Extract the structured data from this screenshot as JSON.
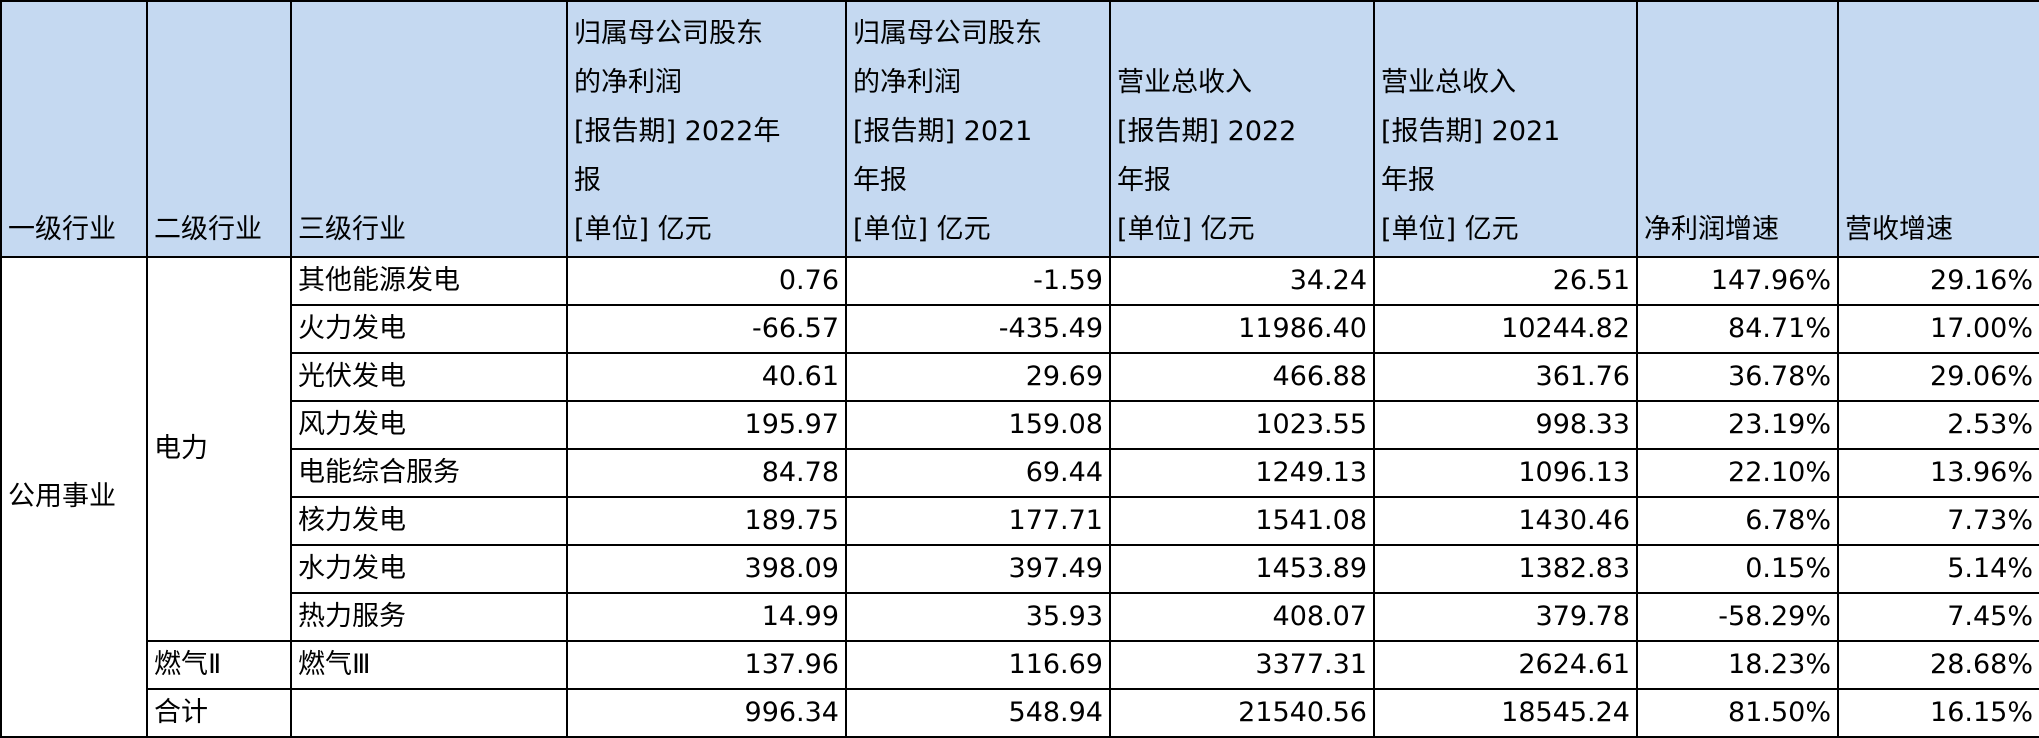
{
  "table": {
    "header": [
      "一级行业",
      "二级行业",
      "三级行业",
      "归属母公司股东\n的净利润\n[报告期] 2022年\n报\n[单位] 亿元",
      "归属母公司股东\n的净利润\n[报告期] 2021\n年报\n[单位] 亿元",
      "营业总收入\n[报告期] 2022\n年报\n[单位] 亿元",
      "营业总收入\n[报告期] 2021\n年报\n[单位] 亿元",
      "净利润增速",
      "营收增速"
    ],
    "level1": "公用事业",
    "groups": [
      {
        "name": "电力",
        "rows": [
          {
            "name": "其他能源发电",
            "cells": [
              "0.76",
              "-1.59",
              "34.24",
              "26.51",
              "147.96%",
              "29.16%"
            ]
          },
          {
            "name": "火力发电",
            "cells": [
              "-66.57",
              "-435.49",
              "11986.40",
              "10244.82",
              "84.71%",
              "17.00%"
            ]
          },
          {
            "name": "光伏发电",
            "cells": [
              "40.61",
              "29.69",
              "466.88",
              "361.76",
              "36.78%",
              "29.06%"
            ]
          },
          {
            "name": "风力发电",
            "cells": [
              "195.97",
              "159.08",
              "1023.55",
              "998.33",
              "23.19%",
              "2.53%"
            ]
          },
          {
            "name": "电能综合服务",
            "cells": [
              "84.78",
              "69.44",
              "1249.13",
              "1096.13",
              "22.10%",
              "13.96%"
            ]
          },
          {
            "name": "核力发电",
            "cells": [
              "189.75",
              "177.71",
              "1541.08",
              "1430.46",
              "6.78%",
              "7.73%"
            ]
          },
          {
            "name": "水力发电",
            "cells": [
              "398.09",
              "397.49",
              "1453.89",
              "1382.83",
              "0.15%",
              "5.14%"
            ]
          },
          {
            "name": "热力服务",
            "cells": [
              "14.99",
              "35.93",
              "408.07",
              "379.78",
              "-58.29%",
              "7.45%"
            ]
          }
        ]
      },
      {
        "name": "燃气Ⅱ",
        "rows": [
          {
            "name": "燃气Ⅲ",
            "cells": [
              "137.96",
              "116.69",
              "3377.31",
              "2624.61",
              "18.23%",
              "28.68%"
            ]
          }
        ]
      },
      {
        "name": "合计",
        "rows": [
          {
            "cells": [
              "996.34",
              "548.94",
              "21540.56",
              "18545.24",
              "81.50%",
              "16.15%"
            ]
          }
        ]
      }
    ]
  }
}
